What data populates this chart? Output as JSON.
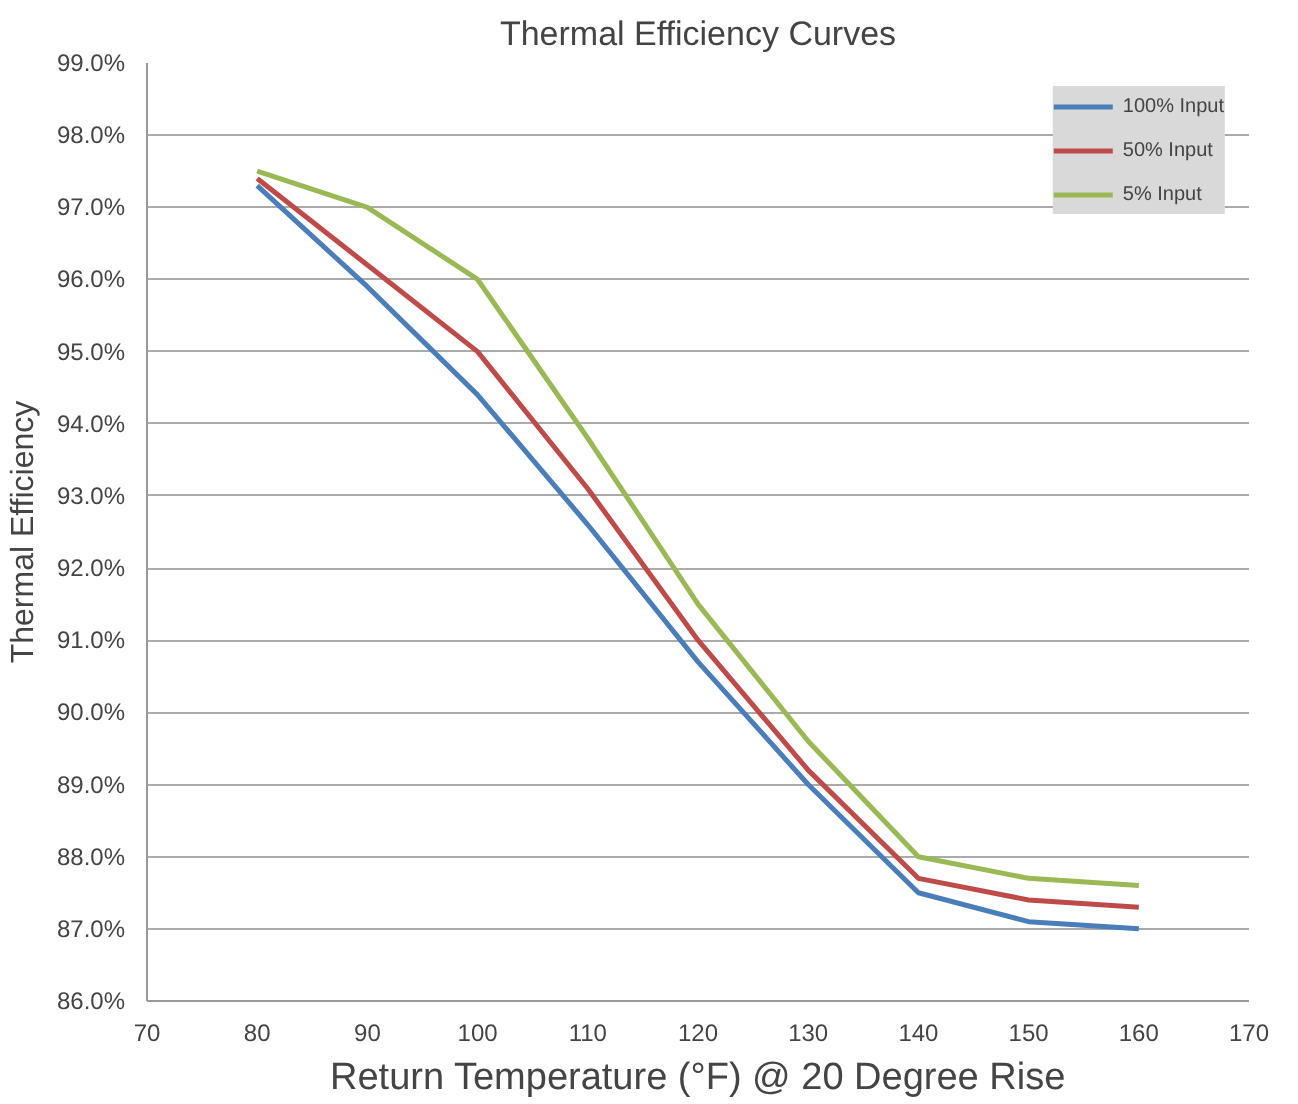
{
  "chart_data": {
    "type": "line",
    "title": "Thermal Efficiency Curves",
    "xlabel": "Return Temperature (°F) @ 20 Degree Rise",
    "ylabel": "Thermal Efficiency",
    "x": [
      80,
      90,
      100,
      110,
      120,
      130,
      140,
      150,
      160
    ],
    "series": [
      {
        "name": "100% Input",
        "color": "#4a7ebb",
        "values": [
          97.3,
          95.9,
          94.4,
          92.6,
          90.7,
          89.0,
          87.5,
          87.1,
          87.0
        ]
      },
      {
        "name": "50% Input",
        "color": "#be4b48",
        "values": [
          97.4,
          96.2,
          95.0,
          93.1,
          91.0,
          89.2,
          87.7,
          87.4,
          87.3
        ]
      },
      {
        "name": "5% Input",
        "color": "#98b954",
        "values": [
          97.5,
          97.0,
          96.0,
          93.8,
          91.5,
          89.6,
          88.0,
          87.7,
          87.6
        ]
      }
    ],
    "xlim": [
      70,
      170
    ],
    "xticks": [
      70,
      80,
      90,
      100,
      110,
      120,
      130,
      140,
      150,
      160,
      170
    ],
    "ylim": [
      86,
      99
    ],
    "yticks": [
      {
        "value": 86,
        "label": "86.0%"
      },
      {
        "value": 87,
        "label": "87.0%"
      },
      {
        "value": 88,
        "label": "88.0%"
      },
      {
        "value": 89,
        "label": "89.0%"
      },
      {
        "value": 90,
        "label": "90.0%"
      },
      {
        "value": 91,
        "label": "91.0%"
      },
      {
        "value": 92,
        "label": "92.0%"
      },
      {
        "value": 93,
        "label": "93.0%"
      },
      {
        "value": 94,
        "label": "94.0%"
      },
      {
        "value": 95,
        "label": "95.0%"
      },
      {
        "value": 96,
        "label": "96.0%"
      },
      {
        "value": 97,
        "label": "97.0%"
      },
      {
        "value": 98,
        "label": "98.0%"
      },
      {
        "value": 99,
        "label": "99.0%"
      }
    ],
    "grid": "y",
    "legend": "top right",
    "line_style": "solid"
  }
}
